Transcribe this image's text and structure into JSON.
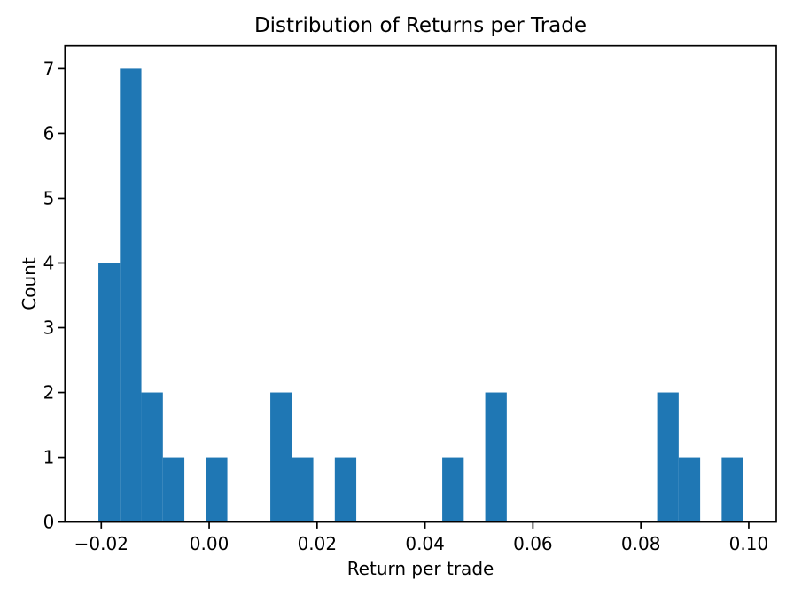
{
  "chart_data": {
    "type": "bar",
    "subtype": "histogram",
    "title": "Distribution of Returns per Trade",
    "xlabel": "Return per trade",
    "ylabel": "Count",
    "bar_color": "#1f77b4",
    "axis_color": "#000000",
    "background_color": "#ffffff",
    "grid": false,
    "legend": "none",
    "n_bins": 30,
    "bin_start": -0.02053,
    "bin_width": 0.003983,
    "counts": [
      4,
      7,
      2,
      1,
      0,
      1,
      0,
      0,
      2,
      1,
      0,
      1,
      0,
      0,
      0,
      0,
      1,
      0,
      2,
      0,
      0,
      0,
      0,
      0,
      0,
      0,
      2,
      1,
      0,
      1
    ],
    "total_trades": 26,
    "xlim": [
      -0.02673,
      0.1051
    ],
    "ylim": [
      0,
      7.352
    ],
    "xticks": [
      -0.02,
      0.0,
      0.02,
      0.04,
      0.06,
      0.08,
      0.1
    ],
    "xtick_labels": [
      "−0.02",
      "0.00",
      "0.02",
      "0.04",
      "0.06",
      "0.08",
      "0.10"
    ],
    "yticks": [
      0,
      1,
      2,
      3,
      4,
      5,
      6,
      7
    ],
    "ytick_labels": [
      "0",
      "1",
      "2",
      "3",
      "4",
      "5",
      "6",
      "7"
    ]
  }
}
